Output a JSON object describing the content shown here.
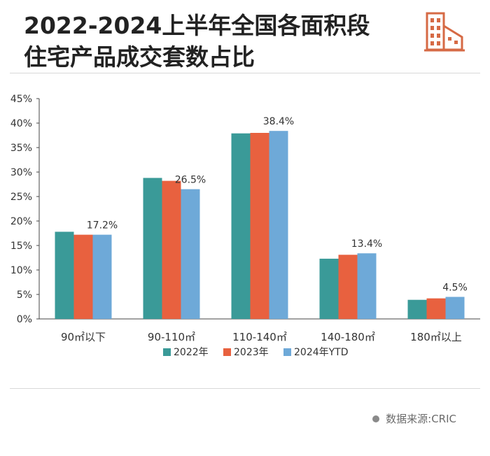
{
  "header": {
    "title_line1": "2022-2024上半年全国各面积段",
    "title_line2": "住宅产品成交套数占比",
    "logo_icon": "building-icon"
  },
  "colors": {
    "series_2022": "#3a9a98",
    "series_2023": "#e8613f",
    "series_2024": "#6ea9d8",
    "logo": "#d66a45",
    "axis_text": "#333333"
  },
  "chart_data": {
    "type": "bar",
    "categories": [
      "90㎡以下",
      "90-110㎡",
      "110-140㎡",
      "140-180㎡",
      "180㎡以上"
    ],
    "series": [
      {
        "name": "2022年",
        "values": [
          17.8,
          28.8,
          37.9,
          12.3,
          3.9
        ]
      },
      {
        "name": "2023年",
        "values": [
          17.2,
          28.2,
          38.0,
          13.1,
          4.2
        ]
      },
      {
        "name": "2024年YTD",
        "values": [
          17.2,
          26.5,
          38.4,
          13.4,
          4.5
        ]
      }
    ],
    "data_labels": [
      "17.2%",
      "26.5%",
      "38.4%",
      "13.4%",
      "4.5%"
    ],
    "yticks": [
      "0%",
      "5%",
      "10%",
      "15%",
      "20%",
      "25%",
      "30%",
      "35%",
      "40%",
      "45%"
    ],
    "ylim": [
      0,
      45
    ],
    "grid": false,
    "legend_position": "bottom"
  },
  "footer": {
    "source": "数据来源:CRIC"
  }
}
